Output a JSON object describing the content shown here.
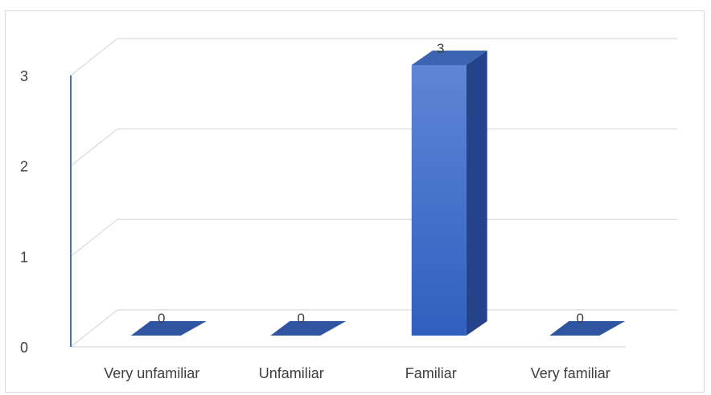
{
  "chart_data": {
    "type": "bar",
    "style": "3d-column",
    "categories": [
      "Very unfamiliar",
      "Unfamiliar",
      "Familiar",
      "Very familiar"
    ],
    "values": [
      0,
      0,
      3,
      0
    ],
    "ylim": [
      0,
      3
    ],
    "yticks": [
      "0",
      "1",
      "2",
      "3"
    ],
    "data_labels": [
      "0",
      "0",
      "3",
      "0"
    ],
    "grid": true,
    "legend": "none",
    "colors": {
      "bar_front_top": "#5f86d6",
      "bar_front_bottom": "#2f5fbf",
      "bar_side": "#24438a",
      "bar_top": "#3d64b0",
      "flat_bar": "#2f55a0",
      "gridline": "#d9d9d9",
      "axis": "#4472c4"
    }
  }
}
